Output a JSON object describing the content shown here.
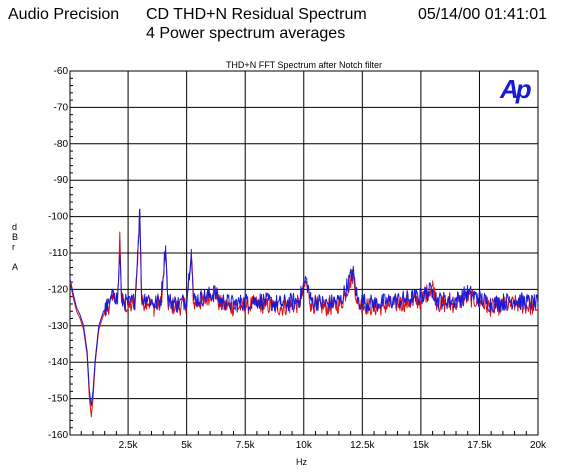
{
  "header": {
    "app": "Audio Precision",
    "title": "CD THD+N Residual Spectrum",
    "subtitle": "4 Power spectrum averages",
    "timestamp": "05/14/00 01:41:01"
  },
  "logo_text": "Ap",
  "colors": {
    "series_red": "#dd1111",
    "series_blue": "#1a1ad6",
    "logo": "#1a1ad6",
    "grid": "#000000"
  },
  "chart_data": {
    "type": "line",
    "title": "THD+N FFT Spectrum after Notch filter",
    "xlabel": "Hz",
    "ylabel_letters": [
      "d",
      "B",
      "r",
      "",
      "A"
    ],
    "xlim": [
      20,
      20000
    ],
    "ylim": [
      -160,
      -60
    ],
    "xticks": [
      2500,
      5000,
      7500,
      10000,
      12500,
      15000,
      17500,
      20000
    ],
    "xtick_labels": [
      "2.5k",
      "5k",
      "7.5k",
      "10k",
      "12.5k",
      "15k",
      "17.5k",
      "20k"
    ],
    "yticks": [
      -60,
      -70,
      -80,
      -90,
      -100,
      -110,
      -120,
      -130,
      -140,
      -150,
      -160
    ],
    "ytick_labels": [
      "-60",
      "-70",
      "-80",
      "-90",
      "-100",
      "-110",
      "-120",
      "-130",
      "-140",
      "-150",
      "-160"
    ],
    "grid": true,
    "noise_floor": -124,
    "series": [
      {
        "color": "#dd1111",
        "points": [
          [
            20,
            -118
          ],
          [
            150,
            -122
          ],
          [
            300,
            -126
          ],
          [
            450,
            -128
          ],
          [
            600,
            -131
          ],
          [
            750,
            -138
          ],
          [
            850,
            -150
          ],
          [
            930,
            -155
          ],
          [
            1000,
            -150
          ],
          [
            1100,
            -140
          ],
          [
            1250,
            -131
          ],
          [
            1450,
            -127
          ],
          [
            1700,
            -125
          ],
          [
            1900,
            -121
          ],
          [
            2050,
            -124
          ],
          [
            2150,
            -105
          ],
          [
            2220,
            -123
          ],
          [
            2500,
            -125
          ],
          [
            2800,
            -124
          ],
          [
            3000,
            -99
          ],
          [
            3080,
            -124
          ],
          [
            3300,
            -123
          ],
          [
            3600,
            -125
          ],
          [
            3900,
            -124
          ],
          [
            4100,
            -110
          ],
          [
            4200,
            -124
          ],
          [
            4600,
            -125
          ],
          [
            5000,
            -124
          ],
          [
            5200,
            -111
          ],
          [
            5300,
            -124
          ],
          [
            5800,
            -123
          ],
          [
            6200,
            -120
          ],
          [
            6400,
            -124
          ],
          [
            7000,
            -125
          ],
          [
            8000,
            -124
          ],
          [
            9000,
            -125
          ],
          [
            9800,
            -124
          ],
          [
            10100,
            -118
          ],
          [
            10300,
            -124
          ],
          [
            11000,
            -125
          ],
          [
            11600,
            -124
          ],
          [
            12100,
            -116
          ],
          [
            12300,
            -124
          ],
          [
            13000,
            -125
          ],
          [
            14000,
            -124
          ],
          [
            15000,
            -123
          ],
          [
            15500,
            -119
          ],
          [
            15700,
            -124
          ],
          [
            16500,
            -124
          ],
          [
            17000,
            -122
          ],
          [
            18000,
            -125
          ],
          [
            19000,
            -124
          ],
          [
            20000,
            -125
          ]
        ]
      },
      {
        "color": "#1a1ad6",
        "points": [
          [
            20,
            -117
          ],
          [
            150,
            -121
          ],
          [
            300,
            -125
          ],
          [
            450,
            -127
          ],
          [
            600,
            -130
          ],
          [
            750,
            -137
          ],
          [
            850,
            -148
          ],
          [
            930,
            -152
          ],
          [
            1000,
            -148
          ],
          [
            1100,
            -139
          ],
          [
            1250,
            -130
          ],
          [
            1450,
            -126
          ],
          [
            1700,
            -124
          ],
          [
            1900,
            -121
          ],
          [
            2050,
            -123
          ],
          [
            2150,
            -110
          ],
          [
            2220,
            -123
          ],
          [
            2500,
            -124
          ],
          [
            2800,
            -123
          ],
          [
            3000,
            -98
          ],
          [
            3080,
            -123
          ],
          [
            3300,
            -122
          ],
          [
            3600,
            -124
          ],
          [
            3900,
            -123
          ],
          [
            4100,
            -108
          ],
          [
            4200,
            -123
          ],
          [
            4600,
            -124
          ],
          [
            5000,
            -123
          ],
          [
            5200,
            -109
          ],
          [
            5300,
            -123
          ],
          [
            5800,
            -122
          ],
          [
            6200,
            -121
          ],
          [
            6400,
            -123
          ],
          [
            7000,
            -124
          ],
          [
            8000,
            -123
          ],
          [
            9000,
            -124
          ],
          [
            9800,
            -123
          ],
          [
            10100,
            -117
          ],
          [
            10300,
            -123
          ],
          [
            11000,
            -124
          ],
          [
            11600,
            -123
          ],
          [
            12100,
            -115
          ],
          [
            12300,
            -123
          ],
          [
            13000,
            -124
          ],
          [
            14000,
            -123
          ],
          [
            15000,
            -122
          ],
          [
            15500,
            -120
          ],
          [
            15700,
            -123
          ],
          [
            16500,
            -123
          ],
          [
            17000,
            -121
          ],
          [
            18000,
            -124
          ],
          [
            19000,
            -123
          ],
          [
            20000,
            -124
          ]
        ]
      }
    ]
  }
}
